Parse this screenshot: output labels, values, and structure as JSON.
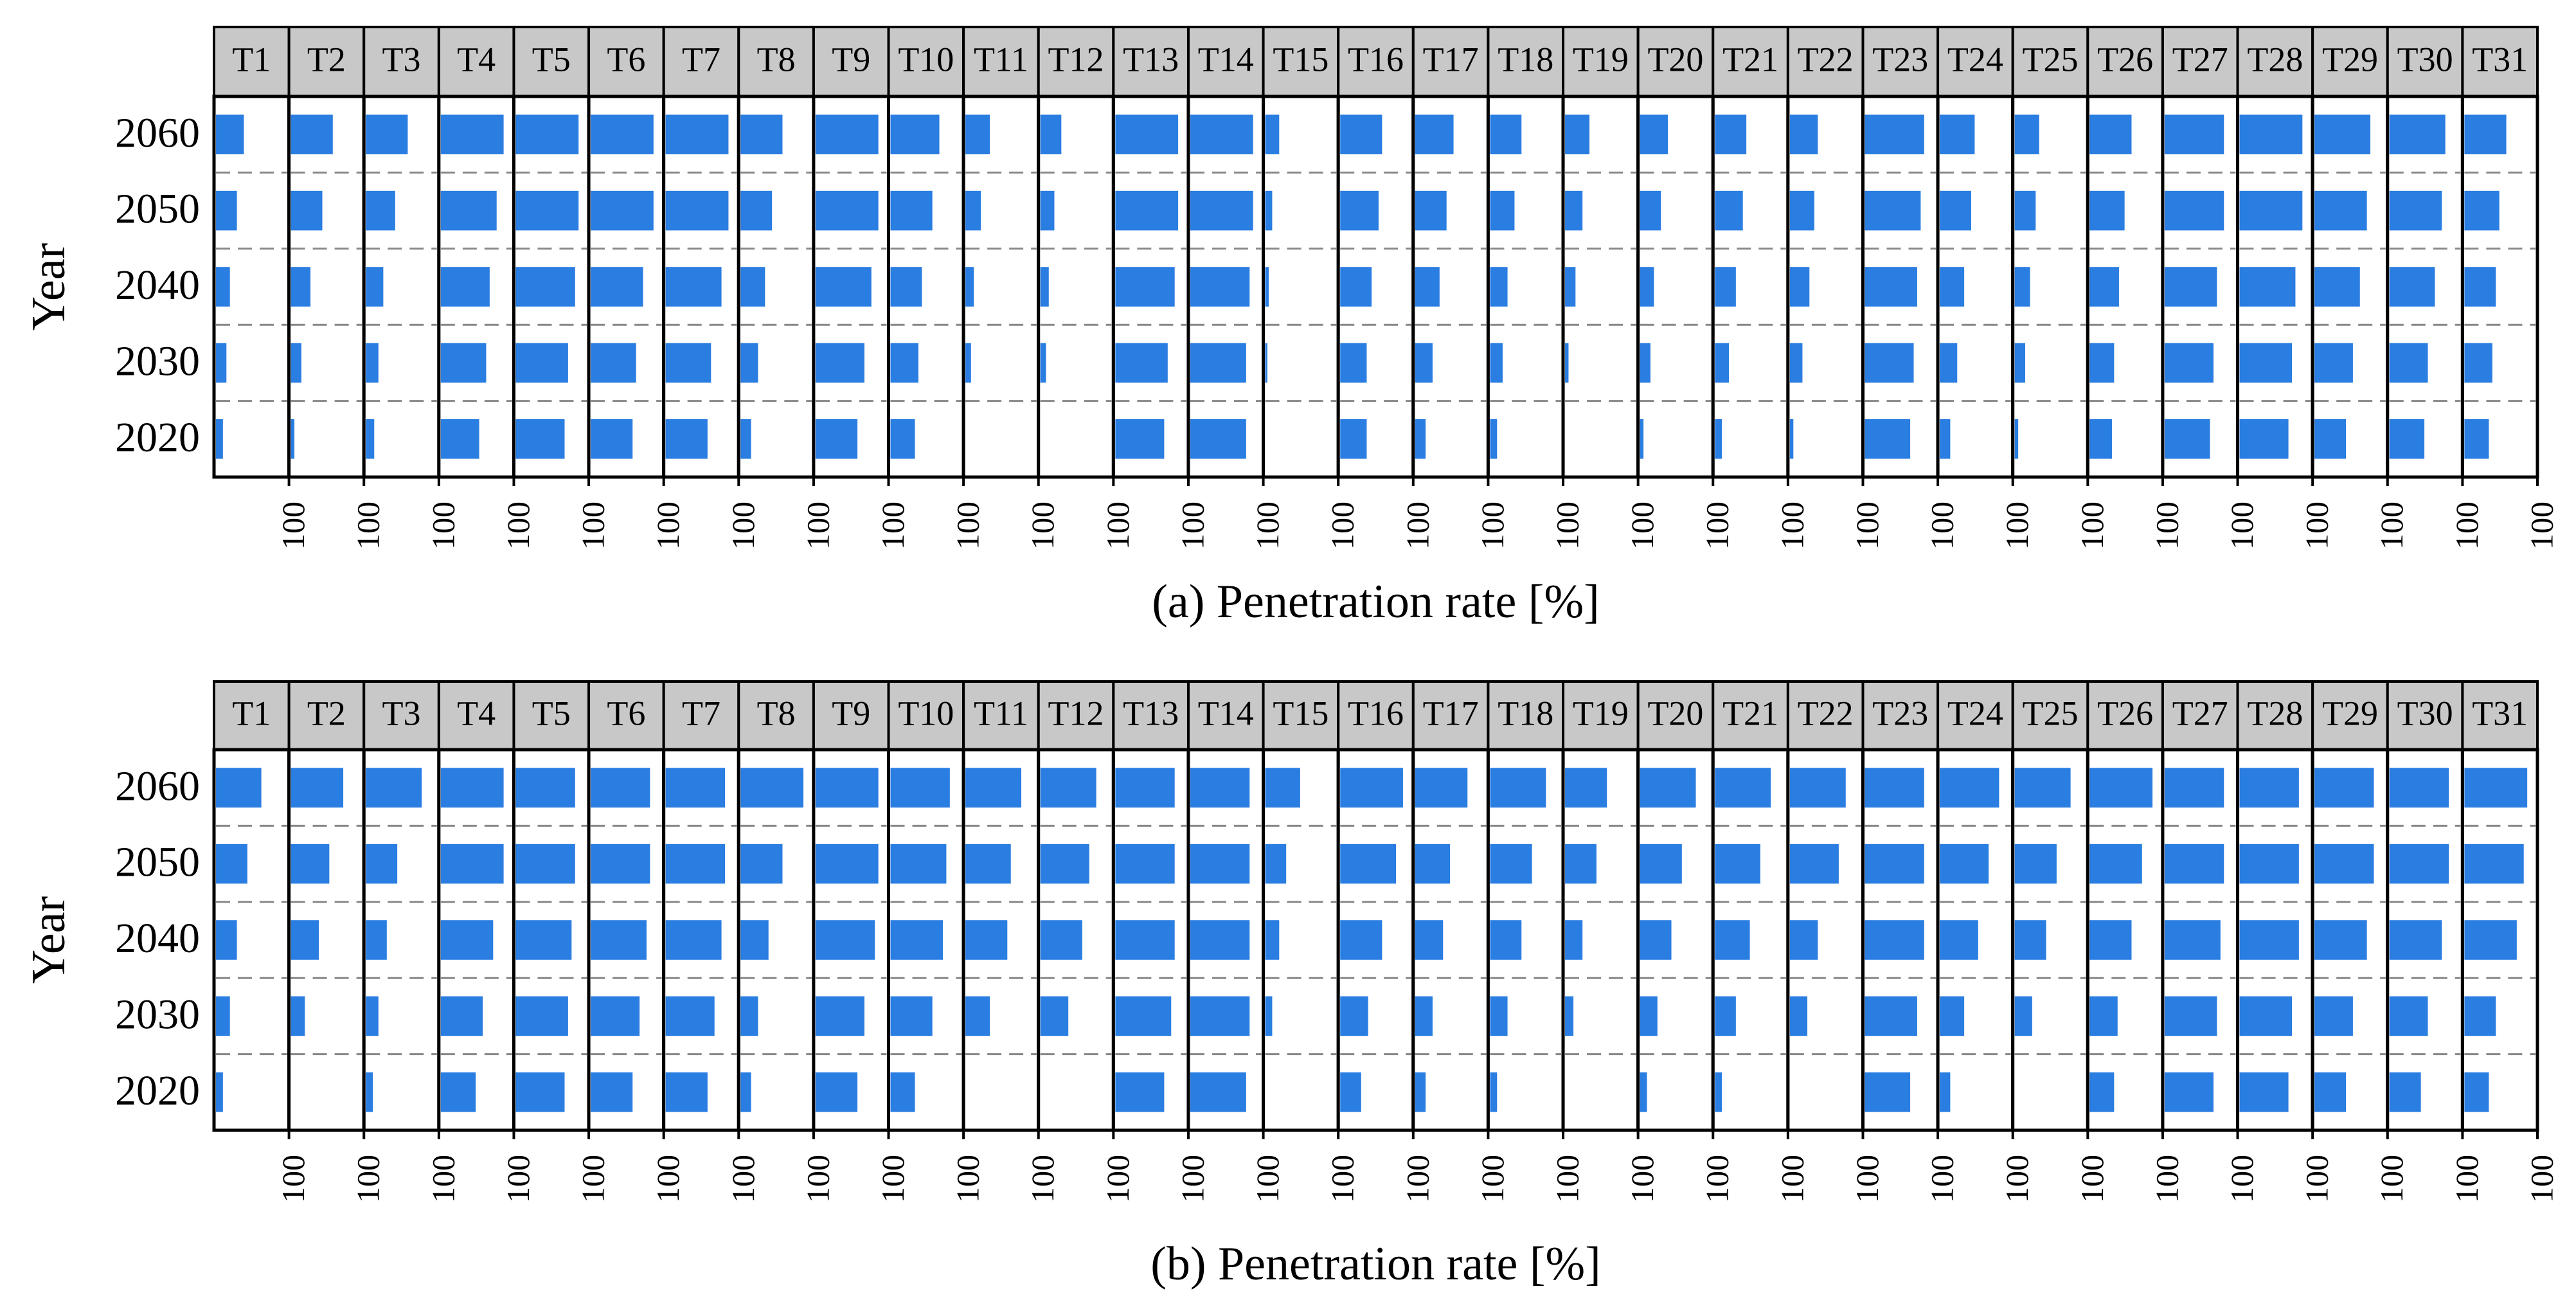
{
  "chart_data": [
    {
      "type": "bar",
      "orientation": "horizontal",
      "panel_label": "(a)",
      "xlabel": "(a) Penetration rate [%]",
      "ylabel": "Year",
      "years": [
        "2060",
        "2050",
        "2040",
        "2030",
        "2020"
      ],
      "facets": [
        "T1",
        "T2",
        "T3",
        "T4",
        "T5",
        "T6",
        "T7",
        "T8",
        "T9",
        "T10",
        "T11",
        "T12",
        "T13",
        "T14",
        "T15",
        "T16",
        "T17",
        "T18",
        "T19",
        "T20",
        "T21",
        "T22",
        "T23",
        "T24",
        "T25",
        "T26",
        "T27",
        "T28",
        "T29",
        "T30",
        "T31"
      ],
      "xtick_label": "100",
      "xlim": [
        0,
        100
      ],
      "values": [
        [
          40,
          30,
          20,
          15,
          10
        ],
        [
          60,
          45,
          28,
          15,
          5
        ],
        [
          60,
          42,
          25,
          18,
          12
        ],
        [
          90,
          80,
          70,
          65,
          55
        ],
        [
          90,
          90,
          85,
          75,
          70
        ],
        [
          90,
          90,
          75,
          65,
          60
        ],
        [
          90,
          90,
          80,
          65,
          60
        ],
        [
          60,
          45,
          35,
          25,
          15
        ],
        [
          90,
          90,
          80,
          70,
          60
        ],
        [
          70,
          60,
          45,
          40,
          35
        ],
        [
          35,
          22,
          12,
          8,
          0
        ],
        [
          30,
          20,
          12,
          8,
          0
        ],
        [
          90,
          90,
          85,
          75,
          70
        ],
        [
          90,
          90,
          85,
          80,
          80
        ],
        [
          20,
          10,
          5,
          3,
          0
        ],
        [
          60,
          55,
          45,
          38,
          38
        ],
        [
          55,
          45,
          35,
          25,
          15
        ],
        [
          45,
          35,
          25,
          18,
          10
        ],
        [
          35,
          25,
          15,
          5,
          0
        ],
        [
          40,
          30,
          20,
          15,
          5
        ],
        [
          45,
          40,
          30,
          20,
          10
        ],
        [
          40,
          35,
          28,
          18,
          5
        ],
        [
          85,
          80,
          75,
          70,
          65
        ],
        [
          50,
          45,
          35,
          25,
          15
        ],
        [
          35,
          30,
          22,
          15,
          5
        ],
        [
          60,
          50,
          42,
          35,
          32
        ],
        [
          85,
          85,
          75,
          70,
          65
        ],
        [
          90,
          90,
          80,
          75,
          70
        ],
        [
          80,
          75,
          65,
          55,
          45
        ],
        [
          80,
          75,
          65,
          55,
          50
        ],
        [
          60,
          50,
          45,
          40,
          35
        ]
      ]
    },
    {
      "type": "bar",
      "orientation": "horizontal",
      "panel_label": "(b)",
      "xlabel": "(b) Penetration rate [%]",
      "ylabel": "Year",
      "years": [
        "2060",
        "2050",
        "2040",
        "2030",
        "2020"
      ],
      "facets": [
        "T1",
        "T2",
        "T3",
        "T4",
        "T5",
        "T6",
        "T7",
        "T8",
        "T9",
        "T10",
        "T11",
        "T12",
        "T13",
        "T14",
        "T15",
        "T16",
        "T17",
        "T18",
        "T19",
        "T20",
        "T21",
        "T22",
        "T23",
        "T24",
        "T25",
        "T26",
        "T27",
        "T28",
        "T29",
        "T30",
        "T31"
      ],
      "xtick_label": "100",
      "xlim": [
        0,
        100
      ],
      "values": [
        [
          65,
          45,
          30,
          20,
          10
        ],
        [
          75,
          55,
          40,
          20,
          0
        ],
        [
          80,
          45,
          30,
          18,
          10
        ],
        [
          90,
          90,
          75,
          60,
          50
        ],
        [
          85,
          85,
          80,
          75,
          70
        ],
        [
          85,
          85,
          80,
          70,
          60
        ],
        [
          85,
          85,
          80,
          70,
          60
        ],
        [
          90,
          60,
          40,
          25,
          15
        ],
        [
          90,
          90,
          85,
          70,
          60
        ],
        [
          85,
          80,
          75,
          60,
          35
        ],
        [
          80,
          65,
          60,
          35,
          0
        ],
        [
          80,
          70,
          60,
          40,
          0
        ],
        [
          85,
          85,
          85,
          80,
          70
        ],
        [
          85,
          85,
          85,
          85,
          80
        ],
        [
          50,
          30,
          20,
          10,
          0
        ],
        [
          90,
          80,
          60,
          40,
          30
        ],
        [
          75,
          50,
          40,
          25,
          15
        ],
        [
          80,
          60,
          45,
          25,
          10
        ],
        [
          60,
          45,
          25,
          12,
          0
        ],
        [
          80,
          60,
          45,
          25,
          10
        ],
        [
          80,
          65,
          50,
          30,
          10
        ],
        [
          80,
          70,
          40,
          25,
          0
        ],
        [
          85,
          85,
          85,
          75,
          65
        ],
        [
          85,
          70,
          55,
          35,
          15
        ],
        [
          80,
          60,
          45,
          25,
          0
        ],
        [
          90,
          75,
          60,
          40,
          35
        ],
        [
          85,
          85,
          80,
          75,
          70
        ],
        [
          85,
          85,
          85,
          75,
          70
        ],
        [
          85,
          85,
          75,
          55,
          45
        ],
        [
          85,
          85,
          75,
          55,
          45
        ],
        [
          90,
          85,
          75,
          45,
          35
        ]
      ]
    }
  ]
}
